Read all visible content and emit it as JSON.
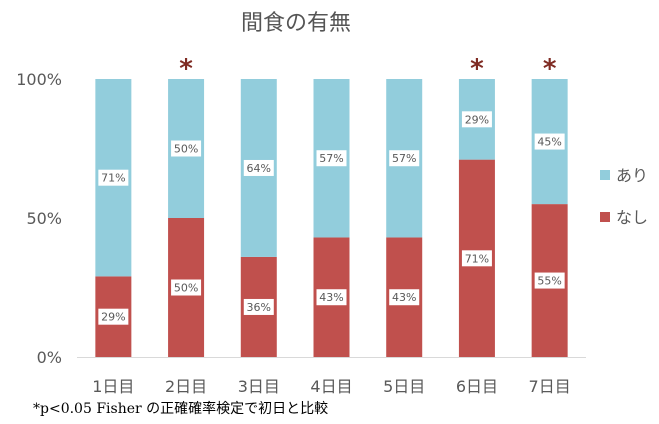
{
  "chart_data": {
    "type": "bar",
    "stacked": "percent",
    "title": "間食の有無",
    "categories": [
      "1日目",
      "2日目",
      "3日目",
      "4日目",
      "5日目",
      "6日目",
      "7日目"
    ],
    "series": [
      {
        "name": "なし",
        "color": "#c0504d",
        "values": [
          29,
          50,
          36,
          43,
          43,
          71,
          55
        ],
        "labels": [
          "29%",
          "50%",
          "36%",
          "43%",
          "43%",
          "71%",
          "55%"
        ]
      },
      {
        "name": "あり",
        "color": "#92cddc",
        "values": [
          71,
          50,
          64,
          57,
          57,
          29,
          45
        ],
        "labels": [
          "71%",
          "50%",
          "64%",
          "57%",
          "57%",
          "29%",
          "45%"
        ]
      }
    ],
    "legend_order": [
      "あり",
      "なし"
    ],
    "significant": [
      false,
      true,
      false,
      false,
      false,
      true,
      true
    ],
    "significance_marker": "*",
    "yticks": [
      "0%",
      "50%",
      "100%"
    ],
    "ylim": [
      0,
      100
    ],
    "legend_position": "right",
    "grid": false
  },
  "footnote": "*p<0.05 Fisher の正確確率検定で初日と比較"
}
